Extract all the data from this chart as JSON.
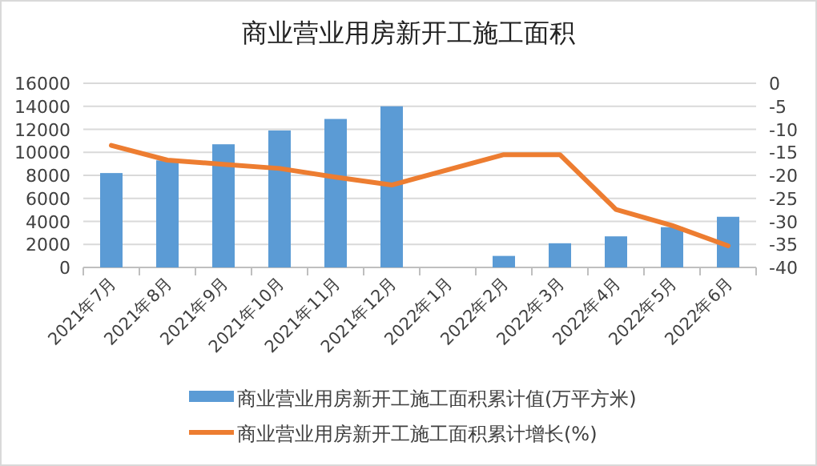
{
  "chart_data": {
    "type": "bar",
    "title": "商业营业用房新开工施工面积",
    "categories": [
      "2021年7月",
      "2021年8月",
      "2021年9月",
      "2021年10月",
      "2021年11月",
      "2021年12月",
      "2022年1月",
      "2022年2月",
      "2022年3月",
      "2022年4月",
      "2022年5月",
      "2022年6月"
    ],
    "series": [
      {
        "name": "商业营业用房新开工施工面积累计值(万平方米)",
        "color": "#5b9bd5",
        "values": [
          8200,
          9300,
          10700,
          11900,
          12900,
          14000,
          null,
          1000,
          2100,
          2700,
          3500,
          4400
        ]
      },
      {
        "name": "商业营业用房新开工施工面积累计增长(%)",
        "type": "line",
        "axis": "y2",
        "color": "#ed7d31",
        "values": [
          -13.5,
          -16.7,
          -17.6,
          -18.5,
          -20.4,
          -22.1,
          null,
          -15.5,
          -15.5,
          -27.4,
          -30.9,
          -35.3
        ]
      }
    ],
    "ylim": [
      0,
      16000
    ],
    "yticks": [
      0,
      2000,
      4000,
      6000,
      8000,
      10000,
      12000,
      14000,
      16000
    ],
    "y2lim": [
      -40,
      0
    ],
    "y2ticks": [
      -40,
      -35,
      -30,
      -25,
      -20,
      -15,
      -10,
      -5,
      0
    ],
    "grid": "y",
    "legend": "bottom"
  }
}
